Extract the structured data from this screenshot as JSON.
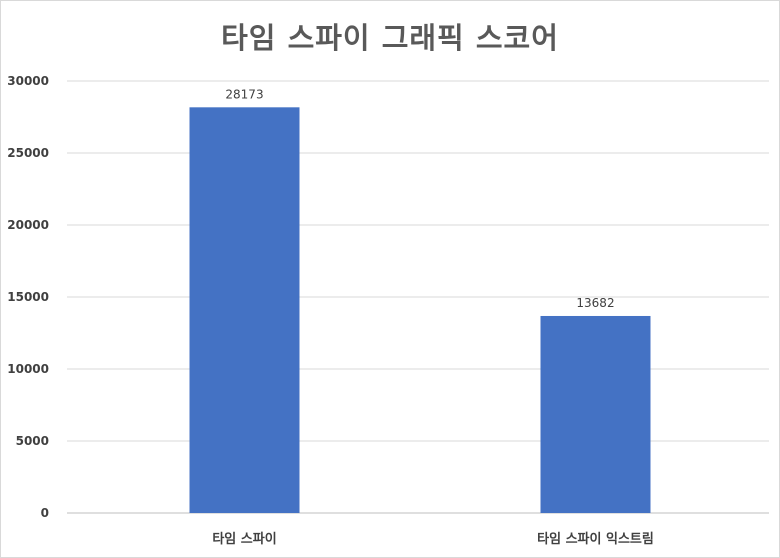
{
  "chart_data": {
    "type": "bar",
    "title": "타임 스파이 그래픽 스코어",
    "categories": [
      "타임 스파이",
      "타임 스파이 익스트림"
    ],
    "values": [
      28173,
      13682
    ],
    "data_labels": [
      "28173",
      "13682"
    ],
    "ylim": [
      0,
      30000
    ],
    "yticks": [
      0,
      5000,
      10000,
      15000,
      20000,
      25000,
      30000
    ],
    "ytick_labels": [
      "0",
      "5000",
      "10000",
      "15000",
      "20000",
      "25000",
      "30000"
    ],
    "xlabel": "",
    "ylabel": "",
    "grid": true,
    "legend": "none",
    "colors": {
      "bar": "#4472c4",
      "grid": "#d9d9d9",
      "axis": "#bfbfbf",
      "text": "#404040",
      "title": "#595959"
    }
  }
}
